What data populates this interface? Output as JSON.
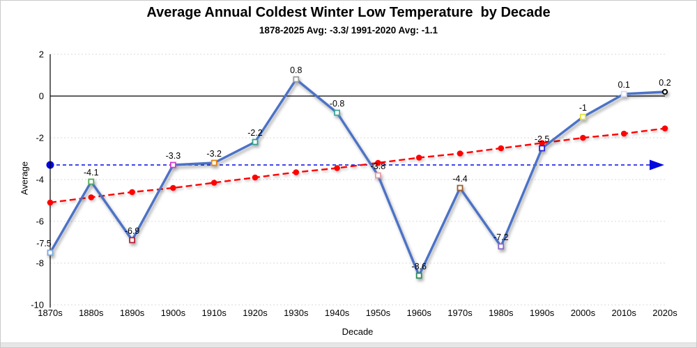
{
  "chart_data": {
    "type": "line",
    "title": "Average Annual Coldest Winter Low Temperature  by Decade",
    "subtitle": "1878-2025 Avg: -3.3/ 1991-2020 Avg: -1.1",
    "xlabel": "Decade",
    "ylabel": "Average",
    "categories": [
      "1870s",
      "1880s",
      "1890s",
      "1900s",
      "1910s",
      "1920s",
      "1930s",
      "1940s",
      "1950s",
      "1960s",
      "1970s",
      "1980s",
      "1990s",
      "2000s",
      "2010s",
      "2020s"
    ],
    "series": [
      {
        "name": "average-coldest-winter-low",
        "type": "line",
        "style": "solid",
        "color": "#4b72c7",
        "values": [
          -7.5,
          -4.1,
          -6.9,
          -3.3,
          -3.2,
          -2.2,
          0.8,
          -0.8,
          -3.8,
          -8.6,
          -4.4,
          -7.2,
          -2.5,
          -1,
          0.1,
          0.2
        ],
        "data_labels": [
          "-7.5",
          "-4.1",
          "-6.9",
          "-3.3",
          "-3.2",
          "-2.2",
          "0.8",
          "-0.8",
          "-3.8",
          "-8.6",
          "-4.4",
          "-7.2",
          "-2.5",
          "-1",
          "0.1",
          "0.2"
        ],
        "marker_shapes": [
          "square",
          "square",
          "square",
          "square",
          "square",
          "square",
          "square",
          "square",
          "square",
          "square",
          "square",
          "square",
          "square",
          "square",
          "square",
          "circle"
        ],
        "marker_colors": [
          "#7da7dc",
          "#4caf50",
          "#b22230",
          "#cf3ccf",
          "#e2820e",
          "#2fa08f",
          "#9a9a9a",
          "#3aa7a0",
          "#e89aa4",
          "#2e8b57",
          "#9c5b2a",
          "#8468c8",
          "#2929d4",
          "#e0e039",
          "#d9d9f0",
          "#000000"
        ],
        "marker_fill": "#ffffff"
      },
      {
        "name": "linear-trend",
        "type": "line",
        "style": "dashed",
        "color": "#ff0000",
        "marker": "filled-circle",
        "values": [
          -5.1,
          -4.85,
          -4.6,
          -4.4,
          -4.15,
          -3.9,
          -3.65,
          -3.45,
          -3.2,
          -2.95,
          -2.75,
          -2.5,
          -2.25,
          -2.0,
          -1.8,
          -1.55
        ]
      }
    ],
    "reference_lines": [
      {
        "name": "overall-average-line",
        "value": -3.3,
        "color": "#0008e0",
        "style": "dashed",
        "left_end": "filled-circle",
        "right_end": "arrow-right"
      },
      {
        "name": "zero-line",
        "value": 0,
        "color": "#000000",
        "style": "solid"
      }
    ],
    "ylim": [
      -10,
      2
    ],
    "ytick_step": 2,
    "yticks": [
      "2",
      "0",
      "-2",
      "-4",
      "-6",
      "-8",
      "-10"
    ],
    "grid": "horizontal-dotted",
    "gridline_color": "#d9d9d9",
    "legend": "none"
  }
}
